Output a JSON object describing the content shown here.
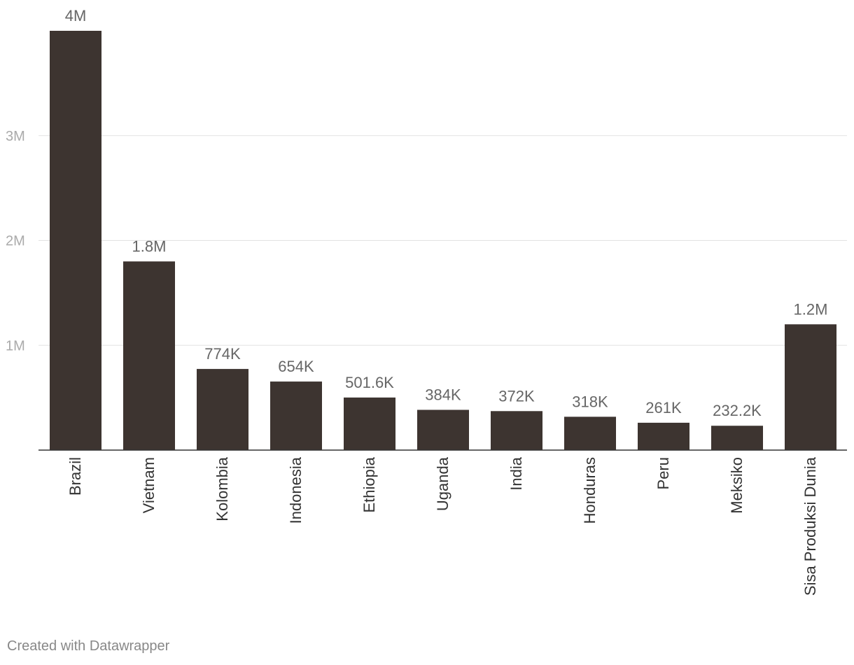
{
  "chart_data": {
    "type": "bar",
    "categories": [
      "Brazil",
      "Vietnam",
      "Kolombia",
      "Indonesia",
      "Ethiopia",
      "Uganda",
      "India",
      "Honduras",
      "Peru",
      "Meksiko",
      "Sisa Produksi Dunia"
    ],
    "values": [
      4000000,
      1800000,
      774000,
      654000,
      501600,
      384000,
      372000,
      318000,
      261000,
      232200,
      1200000
    ],
    "value_labels": [
      "4M",
      "1.8M",
      "774K",
      "654K",
      "501.6K",
      "384K",
      "372K",
      "318K",
      "261K",
      "232.2K",
      "1.2M"
    ],
    "y_ticks": [
      {
        "value": 1000000,
        "label": "1M"
      },
      {
        "value": 2000000,
        "label": "2M"
      },
      {
        "value": 3000000,
        "label": "3M"
      }
    ],
    "ylim": [
      0,
      4000000
    ],
    "grid": true,
    "colors": {
      "bar": "#3d3430"
    }
  },
  "footer": {
    "credit": "Created with Datawrapper"
  }
}
